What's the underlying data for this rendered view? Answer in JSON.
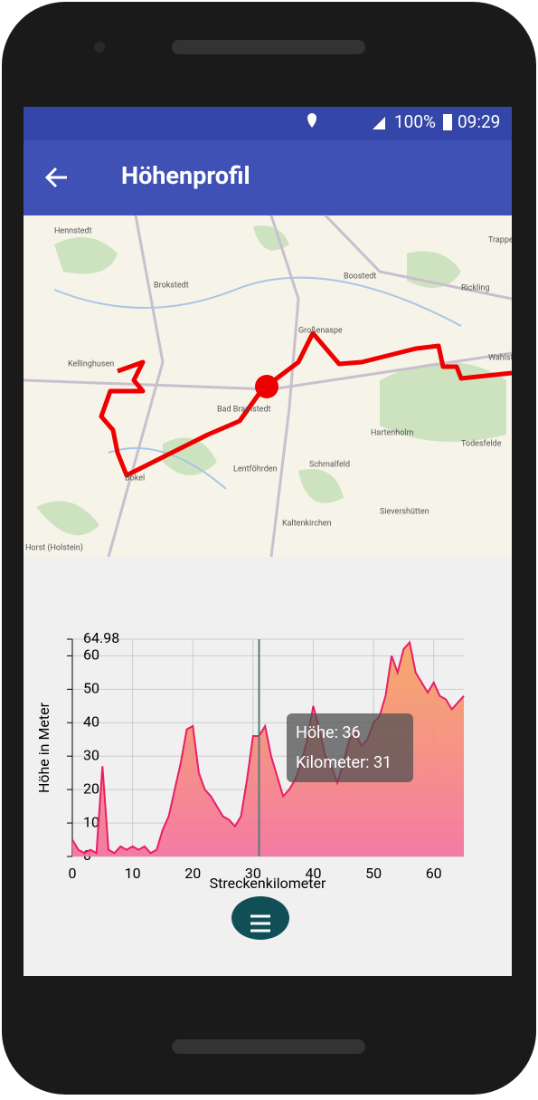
{
  "status_bar": {
    "battery": "100%",
    "time": "09:29"
  },
  "app_bar": {
    "title": "Höhenprofil"
  },
  "map": {
    "labels": [
      "Hennstedt",
      "Brokstedt",
      "Großenaspe",
      "Boostedt",
      "Rickling",
      "Trappenkamp",
      "Kellinghusen",
      "Wahlstedt",
      "Bad Bramstedt",
      "Hartenholm",
      "Todesfelde",
      "Lentföhrden",
      "Schmalfeld",
      "Bokel",
      "Kaltenkirchen",
      "Sievershütten",
      "Horst (Holstein)"
    ]
  },
  "chart_data": {
    "type": "area",
    "ylabel": "Höhe in Meter",
    "xlabel": "Streckenkilometer",
    "x": [
      0,
      1,
      2,
      3,
      4,
      5,
      6,
      7,
      8,
      9,
      10,
      11,
      12,
      13,
      14,
      15,
      16,
      17,
      18,
      19,
      20,
      21,
      22,
      23,
      24,
      25,
      26,
      27,
      28,
      29,
      30,
      31,
      32,
      33,
      34,
      35,
      36,
      37,
      38,
      39,
      40,
      41,
      42,
      43,
      44,
      45,
      46,
      47,
      48,
      49,
      50,
      51,
      52,
      53,
      54,
      55,
      56,
      57,
      58,
      59,
      60,
      61,
      62,
      63,
      64,
      65
    ],
    "series": [
      {
        "name": "Höhe",
        "color": "#e91e63",
        "values": [
          5,
          2,
          1,
          2,
          1,
          27,
          2,
          1,
          3,
          2,
          3,
          2,
          3,
          1,
          2,
          8,
          12,
          20,
          28,
          38,
          39,
          25,
          20,
          18,
          15,
          12,
          11,
          9,
          12,
          23,
          36,
          36,
          39,
          30,
          24,
          18,
          20,
          23,
          28,
          35,
          45,
          38,
          30,
          27,
          22,
          28,
          35,
          37,
          33,
          35,
          40,
          42,
          48,
          60,
          55,
          62,
          64,
          55,
          52,
          49,
          52,
          48,
          47,
          44,
          46,
          48
        ]
      }
    ],
    "xlim": [
      0,
      65
    ],
    "xticks": [
      0,
      10,
      20,
      30,
      40,
      50,
      60
    ],
    "ylim": [
      0,
      64.98
    ],
    "yticks": [
      0,
      10,
      20,
      30,
      40,
      50,
      60,
      64.98
    ],
    "grid": true,
    "cursor_x": 31,
    "tooltip": [
      "Höhe: 36",
      "Kilometer: 31"
    ]
  }
}
